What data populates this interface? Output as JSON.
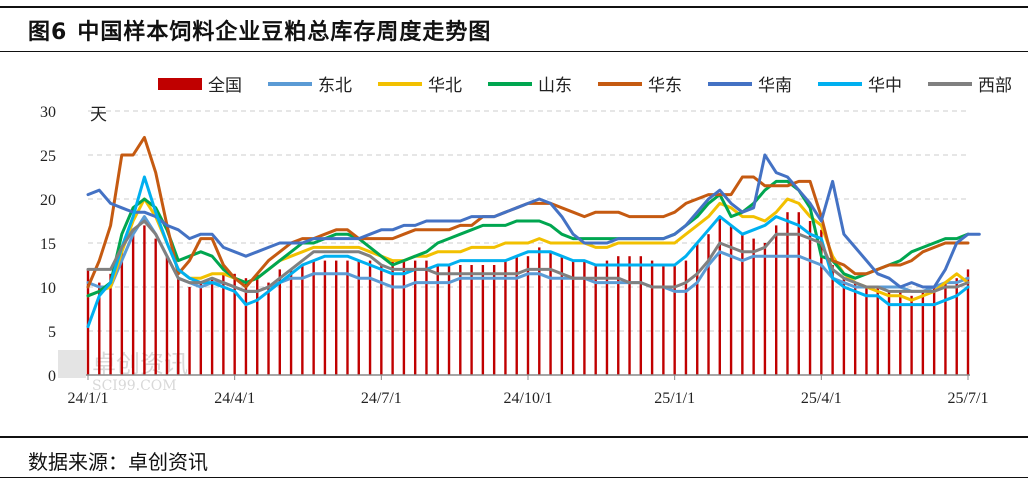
{
  "figure": {
    "number": "图6",
    "title": "中国样本饲料企业豆粕总库存周度走势图"
  },
  "source": "数据来源：卓创资讯",
  "watermark": {
    "text_cn": "卓创资讯",
    "text_en": "SCI99.COM"
  },
  "chart_data": {
    "type": "bar+line",
    "unit": "天",
    "ylim": [
      0,
      30
    ],
    "yticks": [
      0,
      5,
      10,
      15,
      20,
      25,
      30
    ],
    "xtick_labels": [
      "24/1/1",
      "24/4/1",
      "24/7/1",
      "24/10/1",
      "25/1/1",
      "25/4/1",
      "25/7/1"
    ],
    "xtick_index": [
      0,
      13,
      26,
      39,
      52,
      65,
      78
    ],
    "grid": "horizontal dashed",
    "legend_position": "top",
    "bars": {
      "name": "全国",
      "color": "#c00000",
      "values": [
        12,
        10.5,
        11.5,
        14,
        16,
        17,
        15.5,
        13.5,
        11,
        10,
        10.5,
        11,
        11.5,
        11.5,
        11,
        11.5,
        10.5,
        12,
        12,
        12.5,
        13,
        13,
        13,
        13,
        13,
        13,
        12.5,
        13,
        13,
        13,
        13,
        12.5,
        12.5,
        12.5,
        12.5,
        12.5,
        12.5,
        13,
        13.5,
        13.5,
        14.5,
        14,
        13.5,
        13,
        13,
        12.5,
        13,
        13.5,
        13.5,
        13.5,
        13,
        12.5,
        12.5,
        13,
        15,
        16,
        18,
        17,
        16,
        15.5,
        15,
        17,
        18.5,
        18.5,
        17.5,
        16.5,
        12.5,
        11,
        10.5,
        10,
        10,
        9.5,
        9.5,
        9,
        9.5,
        10,
        10.5,
        11,
        12
      ]
    },
    "series": [
      {
        "name": "东北",
        "color": "#5b9bd5",
        "values": [
          10.5,
          10,
          10,
          13,
          16,
          18,
          16,
          13.5,
          11,
          10.5,
          10,
          10.5,
          10.5,
          10,
          9.5,
          9.5,
          10,
          10.5,
          11,
          11,
          11.5,
          11.5,
          11.5,
          11.5,
          11,
          11,
          10.5,
          10,
          10,
          10.5,
          10.5,
          10.5,
          10.5,
          11,
          11,
          11,
          11,
          11,
          11,
          11.5,
          11.5,
          11,
          11,
          11,
          11,
          10.5,
          10.5,
          10.5,
          10.5,
          10.5,
          10,
          10,
          9.5,
          9.5,
          10.5,
          12.5,
          14,
          13.5,
          13,
          13.5,
          13.5,
          13.5,
          13.5,
          13.5,
          13,
          12.5,
          11,
          10.5,
          10,
          10,
          10,
          10,
          10,
          9.5,
          9.5,
          10,
          10.5,
          10.5,
          11
        ]
      },
      {
        "name": "华北",
        "color": "#f2c000",
        "values": [
          9,
          9.5,
          10,
          14,
          17.5,
          20,
          18,
          15,
          12,
          11,
          11,
          11.5,
          11.5,
          11,
          10.5,
          11,
          12,
          13,
          13.5,
          14,
          14.5,
          14.5,
          14.5,
          14.5,
          14.5,
          14,
          13.5,
          13,
          13,
          13.5,
          13.5,
          14,
          14,
          14,
          14.5,
          14.5,
          14.5,
          15,
          15,
          15,
          15.5,
          15,
          15,
          15,
          15,
          14.5,
          14.5,
          15,
          15,
          15,
          15,
          15,
          15,
          16,
          17,
          18,
          19.5,
          19,
          18,
          18,
          17.5,
          18.5,
          20,
          19.5,
          18,
          17,
          13.5,
          11.5,
          10.5,
          10,
          9.5,
          9,
          9,
          8.5,
          9,
          9.5,
          10.5,
          11.5,
          10.5
        ]
      },
      {
        "name": "山东",
        "color": "#00a650",
        "values": [
          9,
          9.5,
          10.5,
          16,
          19,
          20,
          19,
          16.5,
          13,
          13.5,
          14,
          13.5,
          12,
          11,
          10.5,
          11,
          12,
          13,
          14,
          15,
          15,
          15.5,
          16,
          16,
          15.5,
          14.5,
          13.5,
          12.5,
          13,
          13.5,
          14,
          15,
          15.5,
          16,
          16.5,
          17,
          17,
          17,
          17.5,
          17.5,
          17.5,
          17,
          16,
          15.5,
          15.5,
          15.5,
          15.5,
          15.5,
          15.5,
          15.5,
          15.5,
          15.5,
          16,
          17,
          18,
          19.5,
          20.5,
          18,
          18.5,
          19.5,
          21,
          22,
          22,
          21,
          19,
          13.5,
          13,
          11.5,
          11,
          11.5,
          12,
          12.5,
          13,
          14,
          14.5,
          15,
          15.5,
          15.5,
          16
        ]
      },
      {
        "name": "华东",
        "color": "#c55a11",
        "values": [
          10,
          13,
          17,
          25,
          25,
          27,
          23,
          17,
          11.5,
          13,
          15.5,
          15.5,
          12.5,
          11,
          10,
          11.5,
          13,
          14,
          15,
          15.5,
          15.5,
          16,
          16.5,
          16.5,
          15.5,
          15.5,
          15.5,
          15.5,
          16,
          16.5,
          16.5,
          16.5,
          16.5,
          17,
          17,
          18,
          18,
          18.5,
          19,
          19.5,
          19.5,
          19.5,
          19,
          18.5,
          18,
          18.5,
          18.5,
          18.5,
          18,
          18,
          18,
          18,
          18.5,
          19.5,
          20,
          20.5,
          20.5,
          20.5,
          22.5,
          22.5,
          21.5,
          21.5,
          21.5,
          22,
          22,
          18,
          13,
          12.5,
          11.5,
          11.5,
          12,
          12.5,
          12.5,
          13,
          14,
          14.5,
          15,
          15,
          15
        ]
      },
      {
        "name": "华南",
        "color": "#4472c4",
        "values": [
          20.5,
          21,
          19.5,
          19,
          18.5,
          18.5,
          18,
          17,
          16.5,
          15.5,
          16,
          16,
          14.5,
          14,
          13.5,
          14,
          14.5,
          15,
          15,
          15,
          15.5,
          15.5,
          15.5,
          15.5,
          15.5,
          16,
          16.5,
          16.5,
          17,
          17,
          17.5,
          17.5,
          17.5,
          17.5,
          18,
          18,
          18,
          18.5,
          19,
          19.5,
          20,
          19.5,
          18,
          16,
          15,
          15,
          15,
          15.5,
          15.5,
          15.5,
          15.5,
          15.5,
          16,
          17,
          18.5,
          20,
          21,
          19.5,
          18.5,
          19,
          25,
          23,
          22.5,
          21,
          19.5,
          17.5,
          22,
          16,
          14.5,
          13,
          11.5,
          11,
          10,
          10.5,
          10,
          10,
          12,
          15,
          16,
          16
        ]
      },
      {
        "name": "华中",
        "color": "#00b0f0",
        "values": [
          5.5,
          9,
          10.5,
          14.5,
          18,
          22.5,
          18.5,
          15,
          12,
          11,
          10.5,
          10.5,
          10,
          9.5,
          8,
          8.5,
          9.5,
          10.5,
          11.5,
          12.5,
          13,
          13.5,
          13.5,
          13.5,
          13,
          12.5,
          12,
          11.5,
          11.5,
          12,
          12,
          12.5,
          12.5,
          13,
          13,
          13,
          13,
          13,
          13.5,
          14,
          14,
          14,
          13.5,
          13,
          13,
          12.5,
          12.5,
          12.5,
          12.5,
          12.5,
          12.5,
          12.5,
          12.5,
          13.5,
          15,
          16.5,
          18,
          17,
          16,
          16.5,
          17,
          18,
          17.5,
          17,
          16,
          15.5,
          11,
          10,
          9.5,
          9,
          9,
          8,
          8,
          8,
          8,
          8,
          8.5,
          9,
          10
        ]
      },
      {
        "name": "西部",
        "color": "#808080",
        "values": [
          12,
          12,
          12,
          14.5,
          16.5,
          17.5,
          16,
          13.5,
          11,
          10.5,
          10.5,
          11,
          10.5,
          10,
          9.5,
          9.5,
          10,
          11,
          12,
          13,
          14,
          14,
          14,
          14,
          14,
          13.5,
          12.5,
          12,
          12,
          12,
          12,
          11.5,
          11.5,
          11.5,
          11.5,
          11.5,
          11.5,
          11.5,
          11.5,
          12,
          12,
          12,
          11.5,
          11,
          11,
          11,
          11,
          11,
          10.5,
          10.5,
          10,
          10,
          10,
          10.5,
          11.5,
          13,
          15,
          14.5,
          14,
          14,
          14.5,
          16,
          16,
          16,
          15.5,
          15,
          12,
          11,
          10.5,
          10,
          10,
          9.5,
          9.5,
          9.5,
          9.5,
          9.5,
          10,
          10,
          10.5
        ]
      }
    ]
  }
}
